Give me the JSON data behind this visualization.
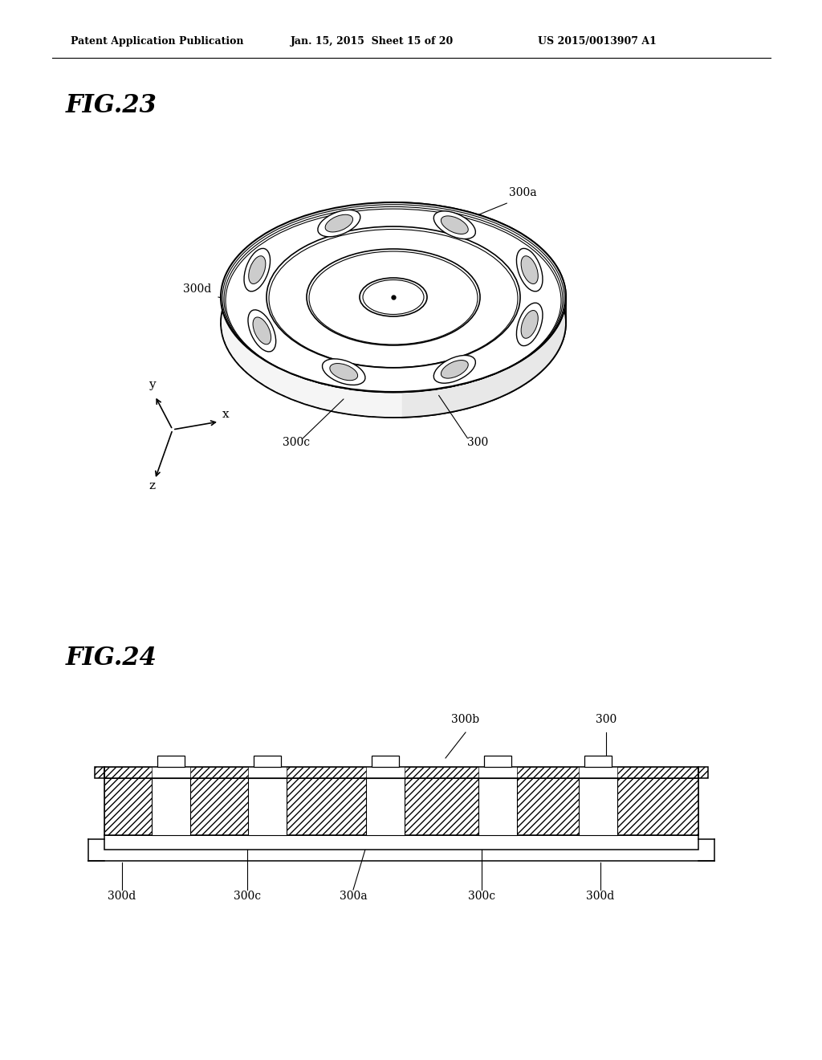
{
  "background_color": "#ffffff",
  "header_left": "Patent Application Publication",
  "header_mid": "Jan. 15, 2015  Sheet 15 of 20",
  "header_right": "US 2015/0013907 A1",
  "fig23_label": "FIG.23",
  "fig24_label": "FIG.24",
  "label_300": "300",
  "label_300a": "300a",
  "label_300b": "300b",
  "label_300c": "300c",
  "label_300d": "300d",
  "line_color": "#000000"
}
